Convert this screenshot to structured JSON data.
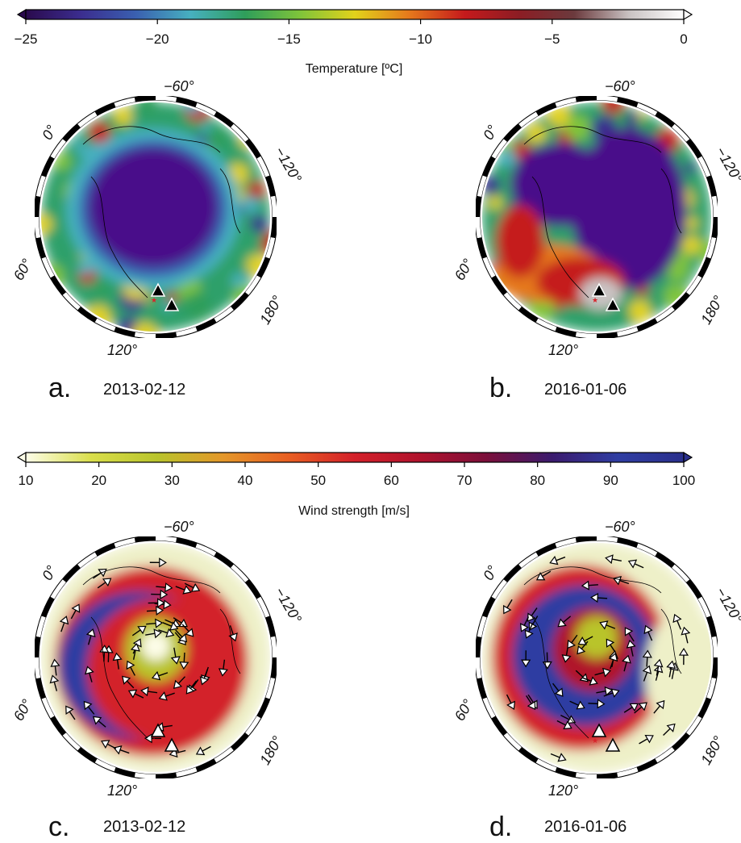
{
  "colorbars": {
    "temperature": {
      "title": "Temperature [ºC]",
      "ticks": [
        "−25",
        "−20",
        "−15",
        "−10",
        "−5",
        "0"
      ],
      "colors": [
        "#2a0a4d",
        "#3b2d8f",
        "#3a5fb0",
        "#47b0c0",
        "#2f9e5a",
        "#7fc43a",
        "#e2d21b",
        "#e5781c",
        "#c51a1c",
        "#8c1d24",
        "#6b3a3d",
        "#c9c2c2",
        "#ffffff"
      ]
    },
    "wind": {
      "title": "Wind strength [m/s]",
      "ticks": [
        "10",
        "20",
        "30",
        "40",
        "50",
        "60",
        "70",
        "80",
        "90",
        "100"
      ],
      "colors": [
        "#fdfde8",
        "#d9de4a",
        "#b9c42c",
        "#e4972a",
        "#e85e22",
        "#d3202a",
        "#b0122c",
        "#7b0f3a",
        "#3b1b6e",
        "#2f3da2",
        "#2a2f8c"
      ]
    }
  },
  "panels": [
    {
      "letter": "a.",
      "date": "2013-02-12",
      "field": "temperature"
    },
    {
      "letter": "b.",
      "date": "2016-01-06",
      "field": "temperature"
    },
    {
      "letter": "c.",
      "date": "2013-02-12",
      "field": "wind"
    },
    {
      "letter": "d.",
      "date": "2016-01-06",
      "field": "wind"
    }
  ],
  "longitude_labels": [
    "−60°",
    "0°",
    "−120°",
    "60°",
    "180°",
    "120°"
  ],
  "markers": {
    "station": "black-triangle",
    "epicenter": "red-star"
  }
}
